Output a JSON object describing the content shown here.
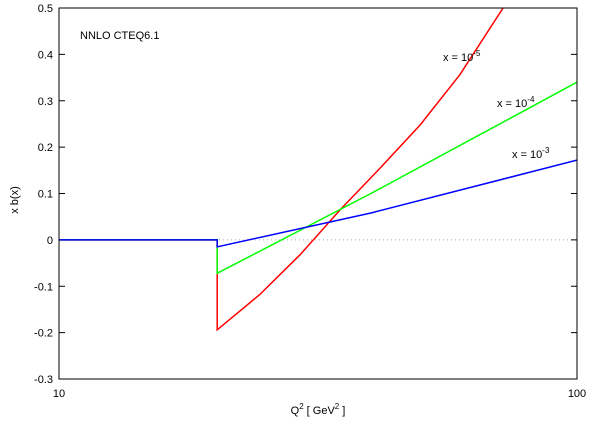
{
  "chart_data": {
    "type": "line",
    "title": "NNLO CTEQ6.1",
    "xlabel_parts": [
      "Q",
      "2",
      "[ GeV",
      "2",
      " ]"
    ],
    "ylabel": "x b(x)",
    "xscale": "log",
    "xlim": [
      10,
      100
    ],
    "xticks": [
      10,
      100
    ],
    "ylim": [
      -0.3,
      0.5
    ],
    "yticks": [
      -0.3,
      -0.2,
      -0.1,
      0,
      0.1,
      0.2,
      0.3,
      0.4,
      0.5
    ],
    "zero_line": true,
    "series": [
      {
        "color": "#ff0000",
        "x": [
          10,
          20.2,
          20.2,
          24.4,
          29.2,
          34.9,
          41.7,
          49.8,
          59.4,
          72.0
        ],
        "values": [
          0,
          0,
          -0.194,
          -0.118,
          -0.032,
          0.065,
          0.155,
          0.248,
          0.356,
          0.5
        ]
      },
      {
        "color": "#00ff00",
        "x": [
          10,
          20.2,
          20.2,
          40,
          100
        ],
        "values": [
          0,
          0,
          -0.072,
          0.1,
          0.34
        ]
      },
      {
        "color": "#0000ff",
        "x": [
          10,
          20.2,
          20.2,
          40,
          100
        ],
        "values": [
          0,
          0,
          -0.015,
          0.058,
          0.172
        ]
      }
    ],
    "annotations": [
      {
        "text": "x = 10",
        "sup": "-5"
      },
      {
        "text": "x = 10",
        "sup": "-4"
      },
      {
        "text": "x = 10",
        "sup": "-3"
      }
    ]
  }
}
